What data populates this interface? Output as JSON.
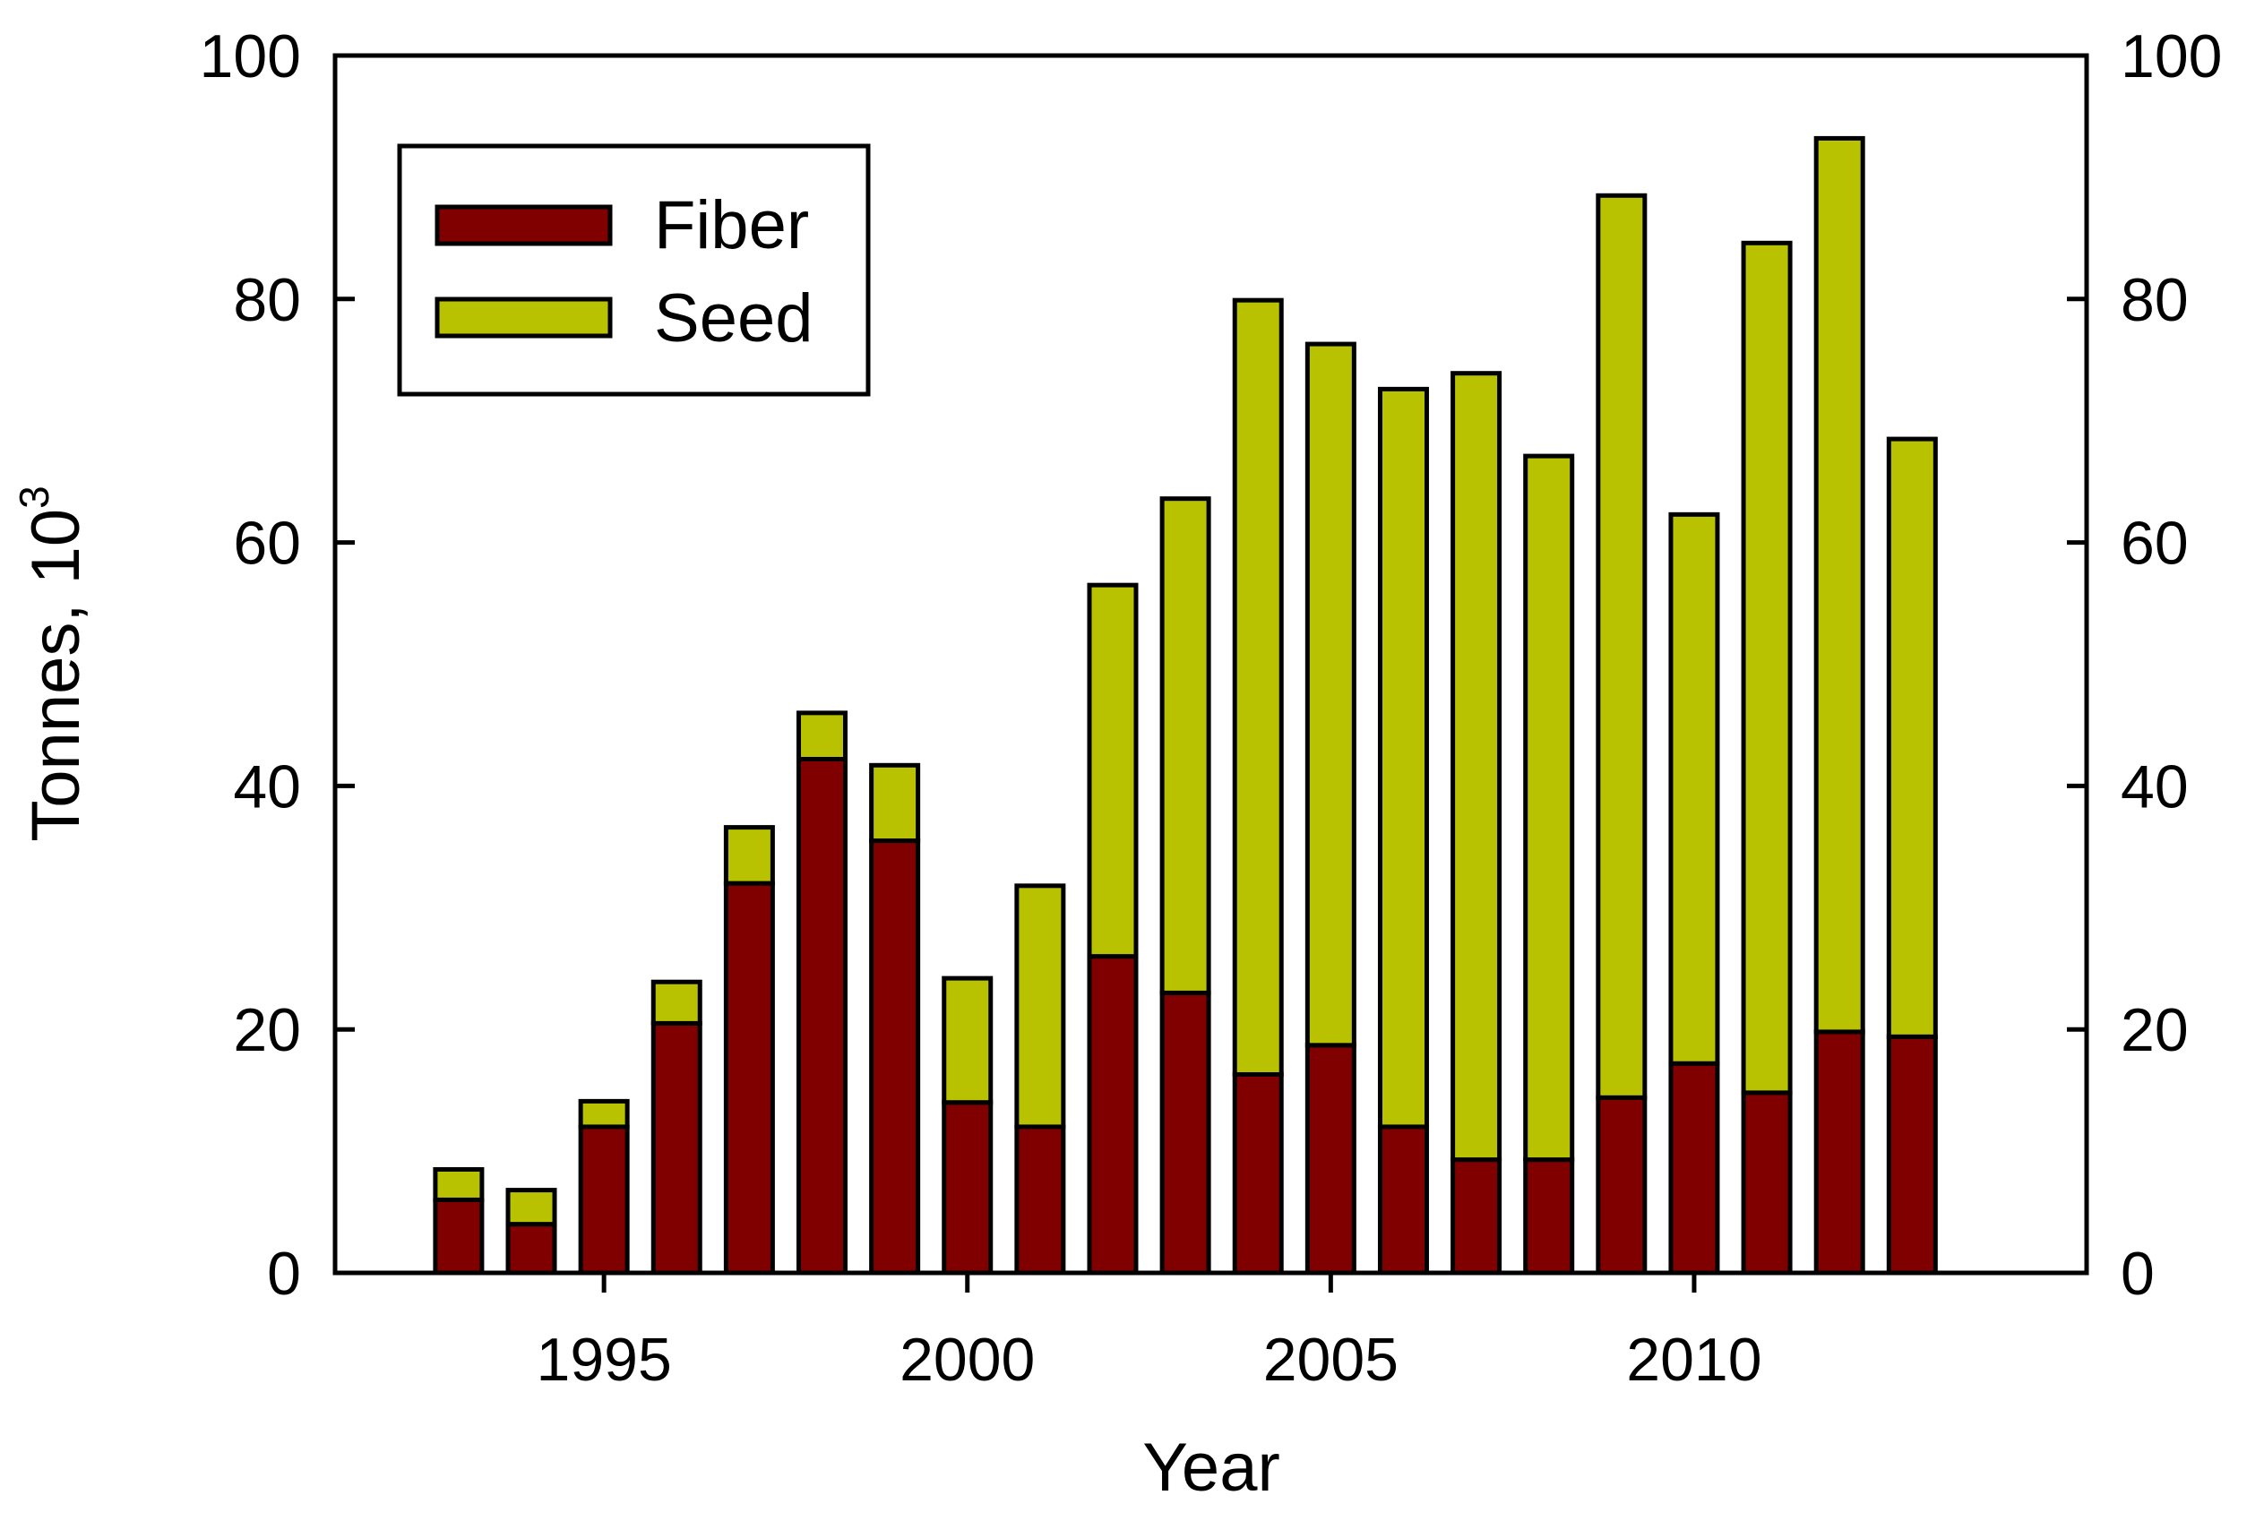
{
  "chart_data": {
    "type": "bar",
    "stacked": true,
    "title": "",
    "xlabel": "Year",
    "ylabel_main": "Tonnes, 10",
    "ylabel_superscript": "3",
    "ylim": [
      0,
      100
    ],
    "yticks": [
      0,
      20,
      40,
      60,
      80,
      100
    ],
    "xlim": [
      1991.3,
      2015.4
    ],
    "xticks": [
      1995,
      2000,
      2005,
      2010
    ],
    "secondary_y_axis": true,
    "legend_position": "top-left",
    "categories": [
      1993,
      1994,
      1995,
      1996,
      1997,
      1998,
      1999,
      2000,
      2001,
      2002,
      2003,
      2004,
      2005,
      2006,
      2007,
      2008,
      2009,
      2010,
      2011,
      2012,
      2013
    ],
    "series": [
      {
        "name": "Fiber",
        "color": "#800000",
        "values": [
          6,
          4,
          12,
          20.5,
          32,
          42.2,
          35.5,
          14,
          12,
          26,
          23,
          16.3,
          18.7,
          12,
          9.3,
          9.3,
          14.4,
          17.2,
          14.8,
          19.8,
          19.4
        ]
      },
      {
        "name": "Seed",
        "color": "#b8c200",
        "values": [
          2.5,
          2.8,
          2.1,
          3.4,
          4.6,
          3.8,
          6.2,
          10.2,
          19.8,
          30.5,
          40.6,
          63.6,
          57.6,
          60.6,
          64.6,
          57.8,
          74.1,
          45.1,
          69.8,
          73.4,
          49.1
        ]
      }
    ]
  }
}
